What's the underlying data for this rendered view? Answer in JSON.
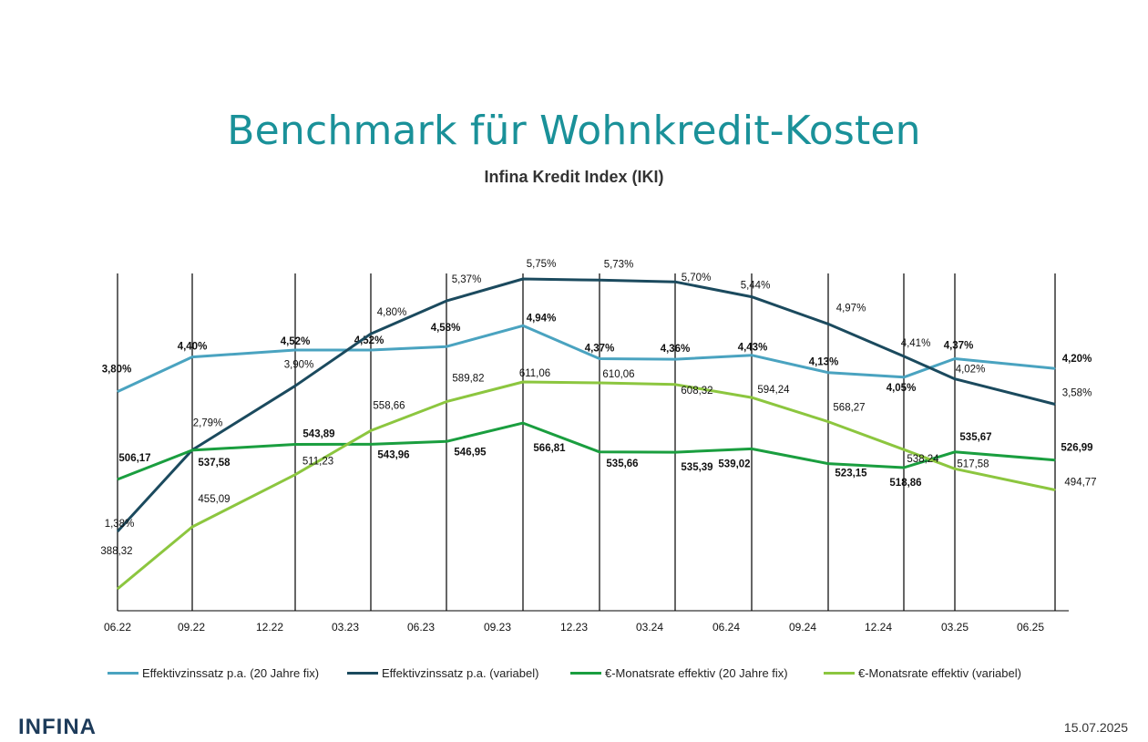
{
  "header": {
    "title": "Benchmark für Wohnkredit-Kosten",
    "subtitle": "Infina Kredit Index (IKI)"
  },
  "footer": {
    "logo_text": "INFINA",
    "date": "15.07.2025"
  },
  "colors": {
    "title": "#1a9199",
    "fix_rate": "#4aa3c0",
    "var_rate": "#1b4a5e",
    "fix_payment": "#1a9e3f",
    "var_payment": "#8cc63f",
    "axis": "#000000"
  },
  "chart_data": {
    "type": "line",
    "title": "Benchmark für Wohnkredit-Kosten",
    "subtitle": "Infina Kredit Index (IKI)",
    "x_tick_labels": [
      "06.22",
      "09.22",
      "12.22",
      "03.23",
      "06.23",
      "09.23",
      "12.23",
      "03.24",
      "06.24",
      "09.24",
      "12.24",
      "03.25",
      "06.25"
    ],
    "x": [
      2022.42,
      2022.67,
      2023.0,
      2023.17,
      2023.42,
      2023.67,
      2023.92,
      2024.17,
      2024.42,
      2024.67,
      2024.92,
      2025.17,
      2025.42
    ],
    "grid": "vertical lines at data points",
    "legend_position": "bottom",
    "series": [
      {
        "name": "Effektivzinssatz p.a. (20 Jahre fix)",
        "color": "#4aa3c0",
        "bold_labels": true,
        "points": [
          {
            "x": "06.22",
            "value": 3.8,
            "label": "3,80%"
          },
          {
            "x": "09.22",
            "value": 4.4,
            "label": "4,40%"
          },
          {
            "x": "12.22",
            "value": 4.52,
            "label": "4,52%"
          },
          {
            "x": "03.23",
            "value": 4.52,
            "label": "4,52%"
          },
          {
            "x": "06.23",
            "value": 4.58,
            "label": "4,58%"
          },
          {
            "x": "09.23",
            "value": 4.94,
            "label": "4,94%"
          },
          {
            "x": "12.23",
            "value": 4.37,
            "label": "4,37%"
          },
          {
            "x": "03.24",
            "value": 4.36,
            "label": "4,36%"
          },
          {
            "x": "06.24",
            "value": 4.43,
            "label": "4,43%"
          },
          {
            "x": "09.24",
            "value": 4.13,
            "label": "4,13%"
          },
          {
            "x": "12.24",
            "value": 4.05,
            "label": "4,05%"
          },
          {
            "x": "03.25",
            "value": 4.37,
            "label": "4,37%"
          },
          {
            "x": "06.25",
            "value": 4.2,
            "label": "4,20%"
          }
        ]
      },
      {
        "name": "Effektivzinssatz p.a. (variabel)",
        "color": "#1b4a5e",
        "bold_labels": false,
        "points": [
          {
            "x": "06.22",
            "value": 1.38,
            "label": "1,38%"
          },
          {
            "x": "09.22",
            "value": 2.79,
            "label": "2,79%"
          },
          {
            "x": "12.22",
            "value": 3.9,
            "label": "3,90%"
          },
          {
            "x": "03.23",
            "value": 4.8,
            "label": "4,80%"
          },
          {
            "x": "06.23",
            "value": 5.37,
            "label": "5,37%"
          },
          {
            "x": "09.23",
            "value": 5.75,
            "label": "5,75%"
          },
          {
            "x": "12.23",
            "value": 5.73,
            "label": "5,73%"
          },
          {
            "x": "03.24",
            "value": 5.7,
            "label": "5,70%"
          },
          {
            "x": "06.24",
            "value": 5.44,
            "label": "5,44%"
          },
          {
            "x": "09.24",
            "value": 4.97,
            "label": "4,97%"
          },
          {
            "x": "12.24",
            "value": 4.41,
            "label": "4,41%"
          },
          {
            "x": "03.25",
            "value": 4.02,
            "label": "4,02%"
          },
          {
            "x": "06.25",
            "value": 3.58,
            "label": "3,58%"
          }
        ]
      },
      {
        "name": "€-Monatsrate effektiv (20 Jahre fix)",
        "color": "#1a9e3f",
        "bold_labels": true,
        "points": [
          {
            "x": "06.22",
            "value": 506.17,
            "label": "506,17"
          },
          {
            "x": "09.22",
            "value": 537.58,
            "label": "537,58"
          },
          {
            "x": "12.22",
            "value": 543.89,
            "label": "543,89"
          },
          {
            "x": "03.23",
            "value": 543.96,
            "label": "543,96"
          },
          {
            "x": "06.23",
            "value": 546.95,
            "label": "546,95"
          },
          {
            "x": "09.23",
            "value": 566.81,
            "label": "566,81"
          },
          {
            "x": "12.23",
            "value": 535.66,
            "label": "535,66"
          },
          {
            "x": "03.24",
            "value": 535.39,
            "label": "535,39"
          },
          {
            "x": "06.24",
            "value": 539.02,
            "label": "539,02"
          },
          {
            "x": "09.24",
            "value": 523.15,
            "label": "523,15"
          },
          {
            "x": "12.24",
            "value": 518.86,
            "label": "518,86"
          },
          {
            "x": "03.25",
            "value": 535.67,
            "label": "535,67"
          },
          {
            "x": "06.25",
            "value": 526.99,
            "label": "526,99"
          }
        ]
      },
      {
        "name": "€-Monatsrate effektiv (variabel)",
        "color": "#8cc63f",
        "bold_labels": false,
        "points": [
          {
            "x": "06.22",
            "value": 388.32,
            "label": "388,32"
          },
          {
            "x": "09.22",
            "value": 455.09,
            "label": "455,09"
          },
          {
            "x": "12.22",
            "value": 511.23,
            "label": "511,23"
          },
          {
            "x": "03.23",
            "value": 558.66,
            "label": "558,66"
          },
          {
            "x": "06.23",
            "value": 589.82,
            "label": "589,82"
          },
          {
            "x": "09.23",
            "value": 611.06,
            "label": "611,06"
          },
          {
            "x": "12.23",
            "value": 610.06,
            "label": "610,06"
          },
          {
            "x": "03.24",
            "value": 608.32,
            "label": "608,32"
          },
          {
            "x": "06.24",
            "value": 594.24,
            "label": "594,24"
          },
          {
            "x": "09.24",
            "value": 568.27,
            "label": "568,27"
          },
          {
            "x": "12.24",
            "value": 538.24,
            "label": "538,24"
          },
          {
            "x": "03.25",
            "value": 517.58,
            "label": "517,58"
          },
          {
            "x": "06.25",
            "value": 494.77,
            "label": "494,77"
          }
        ]
      }
    ]
  }
}
